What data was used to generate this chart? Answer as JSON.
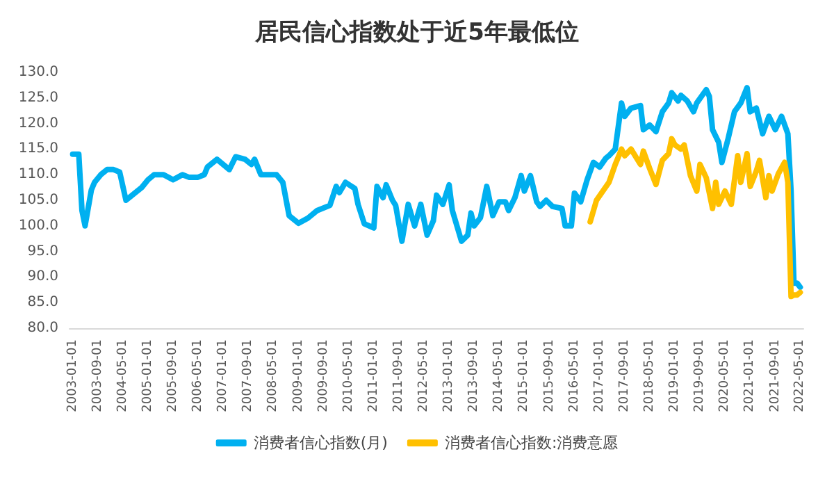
{
  "chart_data": {
    "type": "line",
    "title": "居民信心指数处于近5年最低位",
    "xlim": [
      "2002-12-01",
      "2022-06-01"
    ],
    "xticks": [
      "2003-01-01",
      "2003-09-01",
      "2004-05-01",
      "2005-01-01",
      "2005-09-01",
      "2006-05-01",
      "2007-01-01",
      "2007-09-01",
      "2008-05-01",
      "2009-01-01",
      "2009-09-01",
      "2010-05-01",
      "2011-01-01",
      "2011-09-01",
      "2012-05-01",
      "2013-01-01",
      "2013-09-01",
      "2014-05-01",
      "2015-01-01",
      "2015-09-01",
      "2016-05-01",
      "2017-01-01",
      "2017-09-01",
      "2018-05-01",
      "2019-01-01",
      "2019-09-01",
      "2020-05-01",
      "2021-01-01",
      "2021-09-01",
      "2022-05-01"
    ],
    "ylim": [
      80,
      130
    ],
    "yticks": [
      {
        "value": 80,
        "label": "80.0"
      },
      {
        "value": 85,
        "label": "85.0"
      },
      {
        "value": 90,
        "label": "90.0"
      },
      {
        "value": 95,
        "label": "95.0"
      },
      {
        "value": 100,
        "label": "100.0"
      },
      {
        "value": 105,
        "label": "105.0"
      },
      {
        "value": 110,
        "label": "110.0"
      },
      {
        "value": 115,
        "label": "115.0"
      },
      {
        "value": 120,
        "label": "120.0"
      },
      {
        "value": 125,
        "label": "125.0"
      },
      {
        "value": 130,
        "label": "130.0"
      }
    ],
    "grid": false,
    "legend": "bottom",
    "marker": "none",
    "line_style": "solid",
    "series": [
      {
        "name": "消费者信心指数(月)",
        "color": "#00b0f0",
        "x": [
          "2003-01-01",
          "2003-03-01",
          "2003-04-01",
          "2003-05-01",
          "2003-07-01",
          "2003-08-01",
          "2003-10-01",
          "2003-12-01",
          "2004-02-01",
          "2004-04-01",
          "2004-06-01",
          "2004-08-01",
          "2004-11-01",
          "2005-01-01",
          "2005-03-01",
          "2005-06-01",
          "2005-09-01",
          "2005-12-01",
          "2006-02-01",
          "2006-05-01",
          "2006-07-01",
          "2006-08-01",
          "2006-11-01",
          "2007-03-01",
          "2007-05-01",
          "2007-08-01",
          "2007-10-01",
          "2007-11-01",
          "2008-01-01",
          "2008-03-01",
          "2008-06-01",
          "2008-08-01",
          "2008-10-01",
          "2009-01-01",
          "2009-04-01",
          "2009-07-01",
          "2009-11-01",
          "2010-01-01",
          "2010-02-01",
          "2010-04-01",
          "2010-07-01",
          "2010-08-01",
          "2010-10-01",
          "2011-01-01",
          "2011-02-01",
          "2011-04-01",
          "2011-05-01",
          "2011-07-01",
          "2011-08-01",
          "2011-10-01",
          "2011-12-01",
          "2012-02-01",
          "2012-04-01",
          "2012-06-01",
          "2012-08-01",
          "2012-09-01",
          "2012-11-01",
          "2013-01-01",
          "2013-02-01",
          "2013-05-01",
          "2013-07-01",
          "2013-08-01",
          "2013-09-01",
          "2013-11-01",
          "2014-01-01",
          "2014-03-01",
          "2014-05-01",
          "2014-07-01",
          "2014-08-01",
          "2014-10-01",
          "2014-12-01",
          "2015-01-01",
          "2015-03-01",
          "2015-05-01",
          "2015-06-01",
          "2015-08-01",
          "2015-10-01",
          "2016-01-01",
          "2016-02-01",
          "2016-04-01",
          "2016-05-01",
          "2016-07-01",
          "2016-09-01",
          "2016-11-01",
          "2017-01-01",
          "2017-03-01",
          "2017-04-01",
          "2017-06-01",
          "2017-08-01",
          "2017-09-01",
          "2017-11-01",
          "2018-02-01",
          "2018-03-01",
          "2018-05-01",
          "2018-07-01",
          "2018-09-01",
          "2018-11-01",
          "2018-12-01",
          "2019-02-01",
          "2019-03-01",
          "2019-05-01",
          "2019-07-01",
          "2019-08-01",
          "2019-11-01",
          "2019-12-01",
          "2020-01-01",
          "2020-03-01",
          "2020-04-01",
          "2020-06-01",
          "2020-08-01",
          "2020-10-01",
          "2020-12-01",
          "2021-01-01",
          "2021-03-01",
          "2021-05-01",
          "2021-07-01",
          "2021-09-01",
          "2021-11-01",
          "2022-01-01",
          "2022-02-01",
          "2022-03-01",
          "2022-04-01",
          "2022-05-01"
        ],
        "values": [
          114,
          114,
          103,
          100,
          107,
          108.5,
          110,
          111,
          111,
          110.5,
          105,
          106,
          107.5,
          109,
          110,
          110,
          109,
          110,
          109.5,
          109.5,
          110,
          111.5,
          113,
          111,
          113.5,
          113,
          112,
          113,
          110,
          110,
          110,
          108.5,
          102,
          100.5,
          101.5,
          103,
          104,
          107.7,
          106.5,
          108.5,
          107.3,
          104.2,
          100.4,
          99.6,
          107.7,
          105.5,
          108,
          105,
          104,
          97,
          104.2,
          100,
          104.2,
          98.2,
          101,
          106,
          104.2,
          108,
          103,
          97,
          98.2,
          102.5,
          100,
          101.6,
          107.7,
          102,
          104.7,
          104.7,
          103,
          105.5,
          109.8,
          106.8,
          109.8,
          104.7,
          103.8,
          105,
          103.8,
          103.4,
          100,
          100,
          106.4,
          104.7,
          109,
          112.4,
          111.5,
          113.2,
          113.7,
          115,
          124,
          121.4,
          123,
          123.5,
          118.8,
          119.7,
          118.4,
          122.3,
          124,
          126,
          124.4,
          125.5,
          124.4,
          122.3,
          124,
          126.6,
          125.3,
          118.8,
          116.3,
          112.4,
          117.1,
          122.3,
          124,
          127,
          122.3,
          123,
          118,
          121.4,
          118.8,
          121.4,
          118,
          106.8,
          88.8,
          88.8,
          88
        ]
      },
      {
        "name": "消费者信心指数:消费意愿",
        "color": "#ffc000",
        "x": [
          "2016-10-01",
          "2016-12-01",
          "2017-02-01",
          "2017-04-01",
          "2017-06-01",
          "2017-08-01",
          "2017-09-01",
          "2017-11-01",
          "2018-02-01",
          "2018-03-01",
          "2018-05-01",
          "2018-07-01",
          "2018-09-01",
          "2018-11-01",
          "2018-12-01",
          "2019-01-01",
          "2019-03-01",
          "2019-04-01",
          "2019-06-01",
          "2019-08-01",
          "2019-09-01",
          "2019-11-01",
          "2020-01-01",
          "2020-02-01",
          "2020-03-01",
          "2020-05-01",
          "2020-07-01",
          "2020-09-01",
          "2020-10-01",
          "2020-12-01",
          "2021-01-01",
          "2021-03-01",
          "2021-04-01",
          "2021-06-01",
          "2021-07-01",
          "2021-08-01",
          "2021-10-01",
          "2021-12-01",
          "2022-01-01",
          "2022-02-01",
          "2022-03-01",
          "2022-04-01",
          "2022-05-01"
        ],
        "values": [
          100.8,
          105,
          106.8,
          108.5,
          112,
          115,
          113.7,
          115,
          112,
          114.6,
          111.2,
          108.1,
          112.8,
          114.1,
          117,
          115.8,
          115,
          115.8,
          109.8,
          106.8,
          112,
          109.4,
          103.4,
          108.5,
          104.2,
          106.8,
          104.2,
          113.7,
          108.5,
          114.1,
          107.7,
          110.7,
          112.8,
          105.5,
          109.8,
          106.8,
          110.2,
          112.4,
          108.5,
          86.2,
          86.5,
          86.5,
          87
        ]
      }
    ]
  }
}
